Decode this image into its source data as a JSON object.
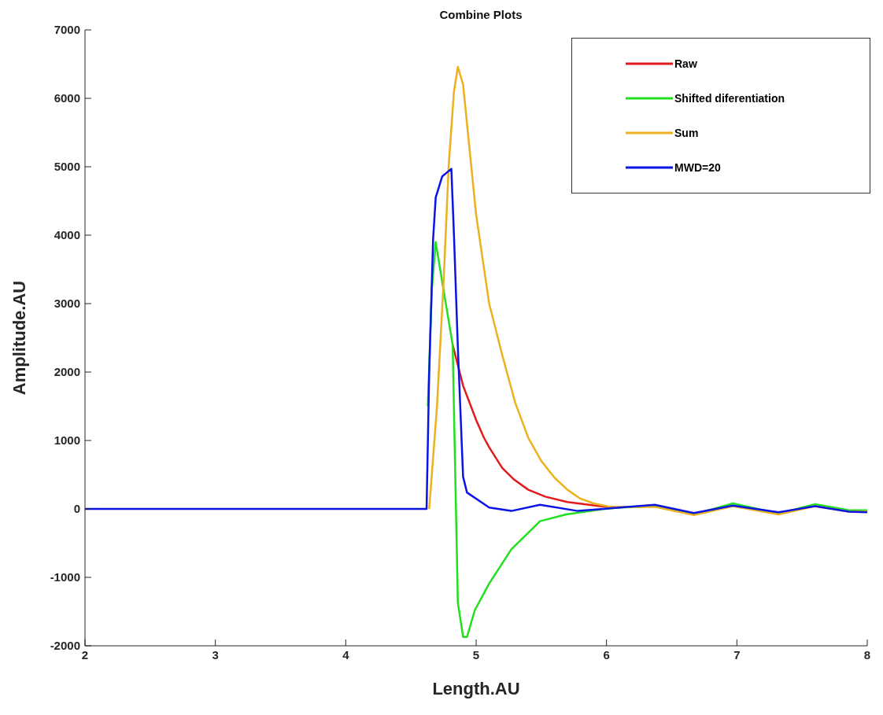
{
  "chart_data": {
    "type": "line",
    "title": "Combine Plots",
    "xlabel": "Length.AU",
    "ylabel": "Amplitude.AU",
    "xlim": [
      2,
      8
    ],
    "xticks": [
      2,
      3,
      4,
      5,
      6,
      7,
      8
    ],
    "ylim": [
      -2000,
      7000
    ],
    "yticks": [
      -2000,
      -1000,
      0,
      1000,
      2000,
      3000,
      4000,
      5000,
      6000,
      7000
    ],
    "grid": false,
    "legend": "top right",
    "line_style": "solid",
    "marker": "none",
    "series": [
      {
        "name": "Raw",
        "color": "#e31a1c",
        "x": [
          4.82,
          4.9,
          5.0,
          5.06,
          5.1,
          5.2,
          5.29,
          5.4,
          5.53,
          5.7,
          5.95,
          6.1
        ],
        "values": [
          2400,
          1800,
          1300,
          1040,
          900,
          600,
          430,
          280,
          180,
          100,
          40,
          20
        ]
      },
      {
        "name": "Shifted diferentiation",
        "color": "#22e01f",
        "x": [
          4.63,
          4.66,
          4.69,
          4.75,
          4.82,
          4.84,
          4.86,
          4.9,
          4.93,
          4.99,
          5.1,
          5.27,
          5.49,
          5.69,
          5.95,
          6.1,
          6.37,
          6.67,
          6.97,
          7.32,
          7.6,
          7.86,
          8
        ],
        "values": [
          1500,
          3200,
          3900,
          3200,
          2400,
          500,
          -1370,
          -1870,
          -1870,
          -1480,
          -1090,
          -590,
          -180,
          -80,
          -10,
          20,
          40,
          -80,
          80,
          -70,
          70,
          -20,
          -20
        ]
      },
      {
        "name": "Sum",
        "color": "#edb120",
        "x": [
          4.64,
          4.7,
          4.75,
          4.79,
          4.83,
          4.86,
          4.9,
          5.0,
          5.1,
          5.2,
          5.3,
          5.4,
          5.5,
          5.6,
          5.7,
          5.8,
          5.9,
          6.03,
          6.37,
          6.67,
          6.97,
          7.32,
          7.6,
          7.86,
          8
        ],
        "values": [
          0,
          1500,
          3300,
          5030,
          6100,
          6460,
          6200,
          4300,
          3000,
          2250,
          1550,
          1040,
          700,
          460,
          280,
          150,
          80,
          30,
          30,
          -90,
          40,
          -80,
          40,
          -40,
          -40
        ]
      },
      {
        "name": "MWD=20",
        "color": "#0a14e6",
        "x": [
          2,
          3,
          4,
          4.62,
          4.64,
          4.67,
          4.69,
          4.74,
          4.81,
          4.83,
          4.86,
          4.9,
          4.93,
          5.1,
          5.27,
          5.49,
          5.78,
          6.1,
          6.37,
          6.67,
          6.97,
          7.32,
          7.6,
          7.86,
          8
        ],
        "values": [
          0,
          0,
          0,
          0,
          2000,
          3940,
          4550,
          4860,
          4970,
          4000,
          2350,
          470,
          240,
          20,
          -30,
          60,
          -30,
          20,
          60,
          -60,
          50,
          -50,
          40,
          -40,
          -50
        ]
      }
    ]
  }
}
